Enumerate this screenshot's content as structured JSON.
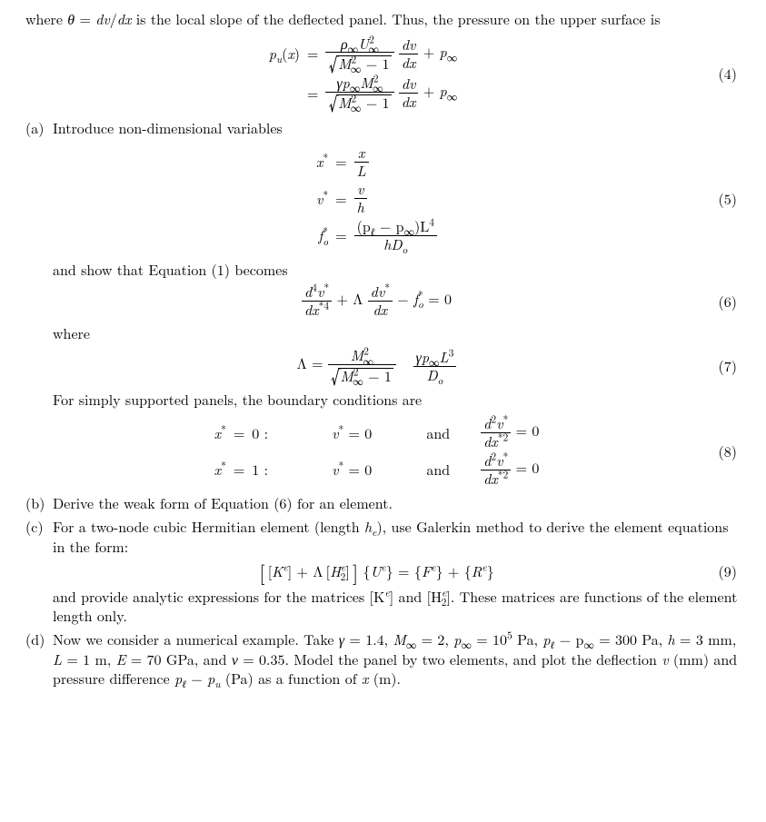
{
  "intro": "where θ = dv/dx is the local slope of the deflected panel. Thus, the pressure on the upper surface is",
  "eq4_lhs": "p",
  "eq4_sub": "u",
  "eq4_arg": "x",
  "eq4_equals": "=",
  "eq4_r1_num_a": "ρ",
  "eq4_r1_num_b": "U",
  "eq4_inf": "∞",
  "eq4_two": "2",
  "eq4_M": "M",
  "eq4_one": "1",
  "eq4_minus": "−",
  "eq4_dvdx_num": "dv",
  "eq4_dvdx_den": "dx",
  "eq4_plus": "+",
  "eq4_p": "p",
  "eq4_r2_gamma": "γp",
  "eq4_num": "(4)",
  "part_a_label": "(a)",
  "part_a_text": "Introduce non-dimensional variables",
  "eq5_xstar": "x",
  "eq5_vstar": "v",
  "eq5_fstar": "f",
  "eq5_star": "*",
  "eq5_osub": "o",
  "eq5_equals": "=",
  "eq5_x": "x",
  "eq5_L": "L",
  "eq5_v": "v",
  "eq5_h": "h",
  "eq5_num_a": "(p",
  "eq5_num_b": " − p",
  "eq5_num_c": ")L",
  "eq5_four": "4",
  "eq5_ell": "ℓ",
  "eq5_inf": "∞",
  "eq5_hDo_h": "hD",
  "eq5_Do_o": "o",
  "eq5_num": "(5)",
  "eq5_after": "and show that Equation (1) becomes",
  "eq6_d4v_num_a": "d",
  "eq6_d4v_num_b": "v",
  "eq6_d4v_den_a": "dx",
  "eq6_four": "4",
  "eq6_star": "*",
  "eq6_plus": "+",
  "eq6_Lambda": "Λ",
  "eq6_dv_num": "dv",
  "eq6_dv_den": "dx",
  "eq6_minus": "−",
  "eq6_f": "f",
  "eq6_osub": "o",
  "eq6_zero": " = 0",
  "eq6_num": "(6)",
  "where_text": "where",
  "eq7_Lambda": "Λ =",
  "eq7_M": "M",
  "eq7_inf": "∞",
  "eq7_two": "2",
  "eq7_one": "1",
  "eq7_minus": "−",
  "eq7_gp": "γp",
  "eq7_L": "L",
  "eq7_three": "3",
  "eq7_D": "D",
  "eq7_o": "o",
  "eq7_num": "(7)",
  "bc_intro": "For simply supported panels, the boundary conditions are",
  "eq8_xstar": "x",
  "eq8_star": "*",
  "eq8_equals": "=",
  "eq8_zero_colon": "0 :",
  "eq8_one_colon": "1 :",
  "eq8_vzero": " = 0",
  "eq8_v": "v",
  "eq8_and": "and",
  "eq8_d2v_num_a": "d",
  "eq8_d2v_num_b": "v",
  "eq8_two": "2",
  "eq8_d2v_den": "dx",
  "eq8_eq0": " = 0",
  "eq8_num": "(8)",
  "part_b_label": "(b)",
  "part_b_text": "Derive the weak form of Equation (6) for an element.",
  "part_c_label": "(c)",
  "part_c_text1": "For a two-node cubic Hermitian element (length ",
  "part_c_he": "h",
  "part_c_he_sub": "e",
  "part_c_text2": "), use Galerkin method to derive the element equations in the form:",
  "eq9_text_a": "[ [K",
  "eq9_e": "e",
  "eq9_text_b": "] + Λ [H",
  "eq9_2": "2",
  "eq9_text_c": "] ] {U",
  "eq9_text_d": "} = {F",
  "eq9_text_e": "} + {R",
  "eq9_text_f": "}",
  "eq9_num": "(9)",
  "part_c_after1": "and provide analytic expressions for the matrices [K",
  "part_c_after2": "] and [H",
  "part_c_after3": "]. These matrices are functions of the element length only.",
  "part_d_label": "(d)",
  "part_d_t1": "Now we consider a numerical example. Take ",
  "part_d_gamma": "γ = 1.4",
  "part_d_c": ", ",
  "part_d_M": "M",
  "part_d_inf": "∞",
  "part_d_Meq": " = 2",
  "part_d_p": "p",
  "part_d_peq": " = 10",
  "part_d_five": "5",
  "part_d_Pa": " Pa",
  "part_d_pl": "p",
  "part_d_ell": "ℓ",
  "part_d_diff": " − p",
  "part_d_300": " = 300 Pa",
  "part_d_h": "h = 3 mm",
  "part_d_L": "L = 1 m",
  "part_d_E": "E = 70 GPa",
  "part_d_and": ", and ",
  "part_d_nu": "ν = 0.35",
  "part_d_t2": ". Model the panel by two elements, and plot the deflection ",
  "part_d_v": "v",
  "part_d_mm": " (mm) and pressure difference ",
  "part_d_pu": "p",
  "part_d_u": "u",
  "part_d_Pa2": " (Pa) as a function of ",
  "part_d_x": "x",
  "part_d_m": " (m)."
}
